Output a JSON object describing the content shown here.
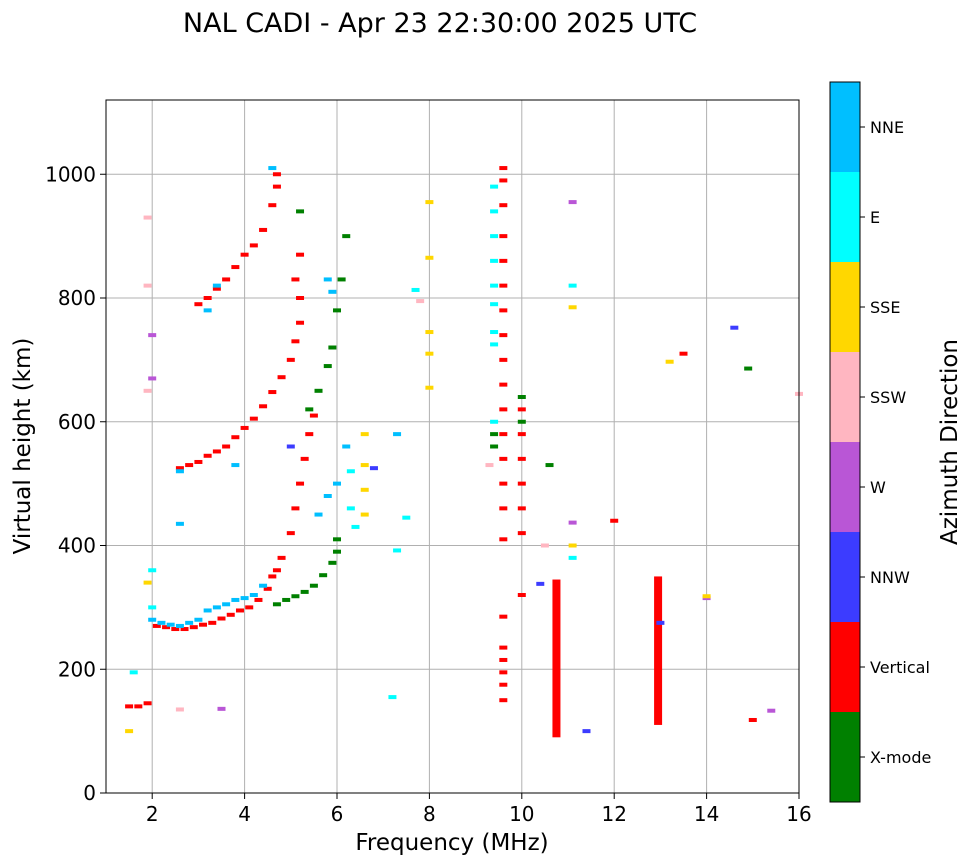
{
  "chart_data": {
    "type": "scatter",
    "title": "NAL CADI - Apr 23 22:30:00 2025 UTC",
    "xlabel": "Frequency (MHz)",
    "ylabel": "Virtual height (km)",
    "xlim": [
      1,
      16
    ],
    "ylim": [
      0,
      1120
    ],
    "xticks": [
      2,
      4,
      6,
      8,
      10,
      12,
      14,
      16
    ],
    "yticks": [
      0,
      200,
      400,
      600,
      800,
      1000
    ],
    "grid": true,
    "colorbar": {
      "title": "Azimuth Direction",
      "categories": [
        {
          "name": "X-mode",
          "color": "#008000"
        },
        {
          "name": "Vertical",
          "color": "#ff0000"
        },
        {
          "name": "NNW",
          "color": "#3c3cff"
        },
        {
          "name": "W",
          "color": "#b956d6"
        },
        {
          "name": "SSW",
          "color": "#ffb6c1"
        },
        {
          "name": "SSE",
          "color": "#ffd700"
        },
        {
          "name": "E",
          "color": "#00ffff"
        },
        {
          "name": "NNE",
          "color": "#00bfff"
        }
      ]
    },
    "series": [
      {
        "name": "Vertical",
        "points": [
          [
            1.5,
            140
          ],
          [
            1.7,
            140
          ],
          [
            1.9,
            145
          ],
          [
            2.1,
            270
          ],
          [
            2.3,
            268
          ],
          [
            2.5,
            265
          ],
          [
            2.7,
            265
          ],
          [
            2.9,
            268
          ],
          [
            3.1,
            272
          ],
          [
            3.3,
            275
          ],
          [
            3.5,
            282
          ],
          [
            3.7,
            288
          ],
          [
            3.9,
            295
          ],
          [
            4.1,
            300
          ],
          [
            4.3,
            312
          ],
          [
            4.5,
            330
          ],
          [
            4.6,
            350
          ],
          [
            4.7,
            360
          ],
          [
            2.6,
            525
          ],
          [
            2.8,
            530
          ],
          [
            3.0,
            535
          ],
          [
            3.2,
            545
          ],
          [
            3.4,
            552
          ],
          [
            3.6,
            560
          ],
          [
            3.8,
            575
          ],
          [
            4.0,
            590
          ],
          [
            4.2,
            605
          ],
          [
            4.4,
            625
          ],
          [
            4.6,
            648
          ],
          [
            4.8,
            672
          ],
          [
            5.0,
            700
          ],
          [
            5.1,
            730
          ],
          [
            5.2,
            760
          ],
          [
            5.2,
            800
          ],
          [
            5.1,
            830
          ],
          [
            5.2,
            870
          ],
          [
            3.0,
            790
          ],
          [
            3.2,
            800
          ],
          [
            3.4,
            815
          ],
          [
            3.6,
            830
          ],
          [
            3.8,
            850
          ],
          [
            4.0,
            870
          ],
          [
            4.2,
            885
          ],
          [
            4.4,
            910
          ],
          [
            4.6,
            950
          ],
          [
            4.7,
            980
          ],
          [
            4.7,
            1000
          ],
          [
            4.8,
            380
          ],
          [
            5.0,
            420
          ],
          [
            5.1,
            460
          ],
          [
            5.2,
            500
          ],
          [
            5.3,
            540
          ],
          [
            5.4,
            580
          ],
          [
            5.5,
            610
          ],
          [
            9.6,
            1010
          ],
          [
            9.6,
            990
          ],
          [
            9.6,
            950
          ],
          [
            9.6,
            900
          ],
          [
            9.6,
            860
          ],
          [
            9.6,
            820
          ],
          [
            9.6,
            780
          ],
          [
            9.6,
            740
          ],
          [
            9.6,
            700
          ],
          [
            9.6,
            660
          ],
          [
            9.6,
            620
          ],
          [
            9.6,
            580
          ],
          [
            9.6,
            540
          ],
          [
            9.6,
            500
          ],
          [
            9.6,
            460
          ],
          [
            9.6,
            410
          ],
          [
            9.6,
            285
          ],
          [
            9.6,
            235
          ],
          [
            9.6,
            215
          ],
          [
            9.6,
            195
          ],
          [
            9.6,
            175
          ],
          [
            9.6,
            150
          ],
          [
            10.0,
            620
          ],
          [
            10.0,
            580
          ],
          [
            10.0,
            540
          ],
          [
            10.0,
            500
          ],
          [
            10.0,
            460
          ],
          [
            10.0,
            420
          ],
          [
            10.0,
            320
          ],
          [
            13.5,
            710
          ],
          [
            12.0,
            440
          ],
          [
            15.0,
            118
          ]
        ]
      },
      {
        "name": "X-mode",
        "points": [
          [
            4.7,
            305
          ],
          [
            4.9,
            312
          ],
          [
            5.1,
            318
          ],
          [
            5.3,
            325
          ],
          [
            5.5,
            335
          ],
          [
            5.7,
            352
          ],
          [
            5.9,
            372
          ],
          [
            6.0,
            390
          ],
          [
            6.0,
            410
          ],
          [
            5.4,
            620
          ],
          [
            5.6,
            650
          ],
          [
            5.8,
            690
          ],
          [
            5.9,
            720
          ],
          [
            6.0,
            780
          ],
          [
            6.1,
            830
          ],
          [
            6.2,
            900
          ],
          [
            10.0,
            600
          ],
          [
            10.0,
            640
          ],
          [
            10.6,
            530
          ],
          [
            14.9,
            686
          ],
          [
            5.2,
            940
          ],
          [
            9.4,
            560
          ],
          [
            9.4,
            580
          ]
        ]
      },
      {
        "name": "NNW",
        "points": [
          [
            14.6,
            752
          ],
          [
            13.0,
            275
          ],
          [
            10.4,
            338
          ],
          [
            11.4,
            100
          ],
          [
            5.0,
            560
          ],
          [
            6.8,
            525
          ]
        ]
      },
      {
        "name": "W",
        "points": [
          [
            11.1,
            955
          ],
          [
            11.1,
            437
          ],
          [
            15.4,
            133
          ],
          [
            14.0,
            315
          ],
          [
            2.0,
            740
          ],
          [
            2.0,
            670
          ],
          [
            3.5,
            136
          ]
        ]
      },
      {
        "name": "SSW",
        "points": [
          [
            1.9,
            930
          ],
          [
            1.9,
            820
          ],
          [
            1.9,
            650
          ],
          [
            9.3,
            530
          ],
          [
            10.5,
            400
          ],
          [
            16.0,
            645
          ],
          [
            7.8,
            795
          ],
          [
            2.6,
            135
          ]
        ]
      },
      {
        "name": "SSE",
        "points": [
          [
            6.6,
            580
          ],
          [
            6.6,
            530
          ],
          [
            6.6,
            490
          ],
          [
            6.6,
            450
          ],
          [
            8.0,
            655
          ],
          [
            8.0,
            710
          ],
          [
            8.0,
            745
          ],
          [
            8.0,
            865
          ],
          [
            8.0,
            955
          ],
          [
            11.1,
            400
          ],
          [
            11.1,
            785
          ],
          [
            13.2,
            697
          ],
          [
            14.0,
            318
          ],
          [
            1.9,
            340
          ],
          [
            1.5,
            100
          ]
        ]
      },
      {
        "name": "E",
        "points": [
          [
            9.4,
            980
          ],
          [
            9.4,
            940
          ],
          [
            9.4,
            900
          ],
          [
            9.4,
            860
          ],
          [
            9.4,
            820
          ],
          [
            9.4,
            790
          ],
          [
            9.4,
            745
          ],
          [
            9.4,
            725
          ],
          [
            9.4,
            600
          ],
          [
            6.3,
            520
          ],
          [
            6.3,
            460
          ],
          [
            6.4,
            430
          ],
          [
            11.1,
            820
          ],
          [
            11.1,
            380
          ],
          [
            7.5,
            445
          ],
          [
            7.3,
            392
          ],
          [
            7.2,
            155
          ],
          [
            7.7,
            813
          ],
          [
            2.0,
            360
          ],
          [
            2.0,
            300
          ],
          [
            1.6,
            195
          ]
        ]
      },
      {
        "name": "NNE",
        "points": [
          [
            2.0,
            280
          ],
          [
            2.2,
            275
          ],
          [
            2.4,
            272
          ],
          [
            2.6,
            270
          ],
          [
            2.8,
            275
          ],
          [
            3.0,
            280
          ],
          [
            3.2,
            295
          ],
          [
            3.4,
            300
          ],
          [
            3.6,
            305
          ],
          [
            3.8,
            312
          ],
          [
            4.0,
            315
          ],
          [
            4.2,
            320
          ],
          [
            4.4,
            335
          ],
          [
            4.6,
            1010
          ],
          [
            3.4,
            820
          ],
          [
            3.2,
            780
          ],
          [
            2.6,
            520
          ],
          [
            3.8,
            530
          ],
          [
            5.6,
            450
          ],
          [
            5.8,
            480
          ],
          [
            6.0,
            500
          ],
          [
            6.2,
            560
          ],
          [
            5.8,
            830
          ],
          [
            5.9,
            810
          ],
          [
            2.6,
            435
          ],
          [
            7.3,
            580
          ]
        ]
      }
    ],
    "vertical_bars": [
      {
        "name": "Vertical",
        "x": 10.75,
        "y0": 90,
        "y1": 345
      },
      {
        "name": "Vertical",
        "x": 12.95,
        "y0": 110,
        "y1": 350
      }
    ]
  }
}
